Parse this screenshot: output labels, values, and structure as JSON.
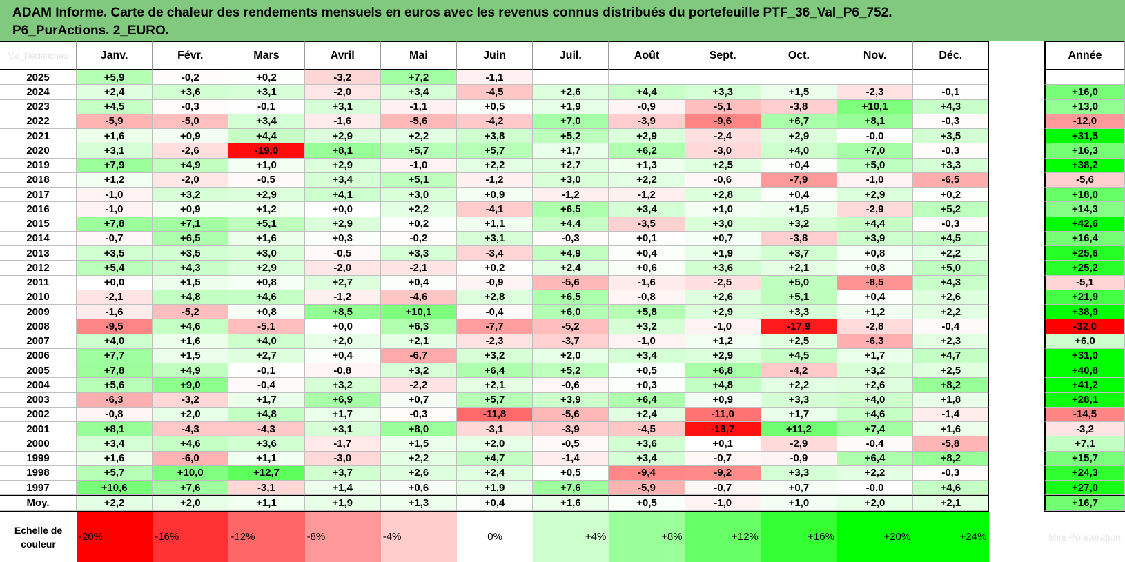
{
  "title": {
    "line1": "ADAM Informe. Carte de chaleur des rendements mensuels en euros avec les revenus connus distribués du portefeuille PTF_36_Val_P6_752.",
    "line2": "P6_PurActions. 2_EURO."
  },
  "corner_label": "Val_Déclencheu",
  "annual_label": "Année",
  "average_label": "Moy.",
  "scale_label": "Echelle de couleur",
  "scale_ghost_label": "Mini Ponderation",
  "colors": {
    "title_bg": "#80c97f",
    "negative_max": "#ff0000",
    "positive_max": "#00ff00",
    "neutral": "#ffffff"
  },
  "chart_data": {
    "type": "heatmap",
    "columns": [
      "Janv.",
      "Févr.",
      "Mars",
      "Avril",
      "Mai",
      "Juin",
      "Juil.",
      "Août",
      "Sept.",
      "Oct.",
      "Nov.",
      "Déc."
    ],
    "rows": [
      {
        "year": "2025",
        "months": [
          "+5,9",
          "-0,2",
          "+0,2",
          "-3,2",
          "+7,2",
          "-1,1",
          "",
          "",
          "",
          "",
          "",
          ""
        ],
        "annual": ""
      },
      {
        "year": "2024",
        "months": [
          "+2,4",
          "+3,6",
          "+3,1",
          "-2,0",
          "+3,4",
          "-4,5",
          "+2,6",
          "+4,4",
          "+3,3",
          "+1,5",
          "-2,3",
          "-0,1"
        ],
        "annual": "+16,0"
      },
      {
        "year": "2023",
        "months": [
          "+4,5",
          "-0,3",
          "-0,1",
          "+3,1",
          "-1,1",
          "+0,5",
          "+1,9",
          "-0,9",
          "-5,1",
          "-3,8",
          "+10,1",
          "+4,3"
        ],
        "annual": "+13,0"
      },
      {
        "year": "2022",
        "months": [
          "-5,9",
          "-5,0",
          "+3,4",
          "-1,6",
          "-5,6",
          "-4,2",
          "+7,0",
          "-3,9",
          "-9,6",
          "+6,7",
          "+8,1",
          "-0,3"
        ],
        "annual": "-12,0"
      },
      {
        "year": "2021",
        "months": [
          "+1,6",
          "+0,9",
          "+4,4",
          "+2,9",
          "+2,2",
          "+3,8",
          "+5,2",
          "+2,9",
          "-2,4",
          "+2,9",
          "-0,0",
          "+3,5"
        ],
        "annual": "+31,5"
      },
      {
        "year": "2020",
        "months": [
          "+3,1",
          "-2,6",
          "-19,0",
          "+8,1",
          "+5,7",
          "+5,7",
          "+1,7",
          "+6,2",
          "-3,0",
          "+4,0",
          "+7,0",
          "-0,3"
        ],
        "annual": "+16,3"
      },
      {
        "year": "2019",
        "months": [
          "+7,9",
          "+4,9",
          "+1,0",
          "+2,9",
          "-1,0",
          "+2,2",
          "+2,7",
          "+1,3",
          "+2,5",
          "+0,4",
          "+5,0",
          "+3,3"
        ],
        "annual": "+38,2"
      },
      {
        "year": "2018",
        "months": [
          "+1,2",
          "-2,0",
          "-0,5",
          "+3,4",
          "+5,1",
          "-1,2",
          "+3,0",
          "+2,2",
          "-0,6",
          "-7,9",
          "-1,0",
          "-6,5"
        ],
        "annual": "-5,6"
      },
      {
        "year": "2017",
        "months": [
          "-1,0",
          "+3,2",
          "+2,9",
          "+4,1",
          "+3,0",
          "+0,9",
          "-1,2",
          "-1,2",
          "+2,8",
          "+0,4",
          "+2,9",
          "+0,2"
        ],
        "annual": "+18,0"
      },
      {
        "year": "2016",
        "months": [
          "-1,0",
          "+0,9",
          "+1,2",
          "+0,0",
          "+2,2",
          "-4,1",
          "+6,5",
          "+3,4",
          "+1,0",
          "+1,5",
          "-2,9",
          "+5,2"
        ],
        "annual": "+14,3"
      },
      {
        "year": "2015",
        "months": [
          "+7,8",
          "+7,1",
          "+5,1",
          "+2,9",
          "+0,2",
          "+1,1",
          "+4,4",
          "-3,5",
          "+3,0",
          "+3,2",
          "+4,4",
          "-0,3"
        ],
        "annual": "+42,6"
      },
      {
        "year": "2014",
        "months": [
          "-0,7",
          "+6,5",
          "+1,6",
          "+0,3",
          "-0,2",
          "+3,1",
          "-0,3",
          "+0,1",
          "+0,7",
          "-3,8",
          "+3,9",
          "+4,5"
        ],
        "annual": "+16,4"
      },
      {
        "year": "2013",
        "months": [
          "+3,5",
          "+3,5",
          "+3,0",
          "-0,5",
          "+3,3",
          "-3,4",
          "+4,9",
          "+0,4",
          "+1,9",
          "+3,7",
          "+0,8",
          "+2,2"
        ],
        "annual": "+25,6"
      },
      {
        "year": "2012",
        "months": [
          "+5,4",
          "+4,3",
          "+2,9",
          "-2,0",
          "-2,1",
          "+0,2",
          "+2,4",
          "+0,6",
          "+3,6",
          "+2,1",
          "+0,8",
          "+5,0"
        ],
        "annual": "+25,2"
      },
      {
        "year": "2011",
        "months": [
          "+0,0",
          "+1,5",
          "+0,8",
          "+2,7",
          "+0,4",
          "-0,9",
          "-5,6",
          "-1,6",
          "-2,5",
          "+5,0",
          "-8,5",
          "+4,3"
        ],
        "annual": "-5,1"
      },
      {
        "year": "2010",
        "months": [
          "-2,1",
          "+4,8",
          "+4,6",
          "-1,2",
          "-4,6",
          "+2,8",
          "+6,5",
          "-0,8",
          "+2,6",
          "+5,1",
          "+0,4",
          "+2,6"
        ],
        "annual": "+21,9"
      },
      {
        "year": "2009",
        "months": [
          "-1,6",
          "-5,2",
          "+0,8",
          "+8,5",
          "+10,1",
          "-0,4",
          "+6,0",
          "+5,8",
          "+2,9",
          "+3,3",
          "+1,2",
          "+2,2"
        ],
        "annual": "+38,9"
      },
      {
        "year": "2008",
        "months": [
          "-9,5",
          "+4,6",
          "-5,1",
          "+0,0",
          "+6,3",
          "-7,7",
          "-5,2",
          "+3,2",
          "-1,0",
          "-17,9",
          "-2,8",
          "-0,4"
        ],
        "annual": "-32,0"
      },
      {
        "year": "2007",
        "months": [
          "+4,0",
          "+1,6",
          "+4,0",
          "+2,0",
          "+2,1",
          "-2,3",
          "-3,7",
          "-1,0",
          "+1,2",
          "+2,5",
          "-6,3",
          "+2,3"
        ],
        "annual": "+6,0"
      },
      {
        "year": "2006",
        "months": [
          "+7,7",
          "+1,5",
          "+2,7",
          "+0,4",
          "-6,7",
          "+3,2",
          "+2,0",
          "+3,4",
          "+2,9",
          "+4,5",
          "+1,7",
          "+4,7"
        ],
        "annual": "+31,0"
      },
      {
        "year": "2005",
        "months": [
          "+7,8",
          "+4,9",
          "-0,1",
          "-0,8",
          "+3,2",
          "+6,4",
          "+5,2",
          "+0,5",
          "+6,8",
          "-4,2",
          "+3,2",
          "+2,5"
        ],
        "annual": "+40,8"
      },
      {
        "year": "2004",
        "months": [
          "+5,6",
          "+9,0",
          "-0,4",
          "+3,2",
          "-2,2",
          "+2,1",
          "-0,6",
          "+0,3",
          "+4,8",
          "+2,2",
          "+2,6",
          "+8,2"
        ],
        "annual": "+41,2"
      },
      {
        "year": "2003",
        "months": [
          "-6,3",
          "-3,2",
          "+1,7",
          "+6,9",
          "+0,7",
          "+5,7",
          "+3,9",
          "+6,4",
          "+0,9",
          "+3,3",
          "+4,0",
          "+1,8"
        ],
        "annual": "+28,1"
      },
      {
        "year": "2002",
        "months": [
          "-0,8",
          "+2,0",
          "+4,8",
          "+1,7",
          "-0,3",
          "-11,8",
          "-5,6",
          "+2,4",
          "-11,0",
          "+1,7",
          "+4,6",
          "-1,4"
        ],
        "annual": "-14,5"
      },
      {
        "year": "2001",
        "months": [
          "+8,1",
          "-4,3",
          "-4,3",
          "+3,1",
          "+8,0",
          "-3,1",
          "-3,9",
          "-4,5",
          "-18,7",
          "+11,2",
          "+7,4",
          "+1,6"
        ],
        "annual": "-3,2"
      },
      {
        "year": "2000",
        "months": [
          "+3,4",
          "+4,6",
          "+3,6",
          "-1,7",
          "+1,5",
          "+2,0",
          "-0,5",
          "+3,6",
          "+0,1",
          "-2,9",
          "-0,4",
          "-5,8"
        ],
        "annual": "+7,1"
      },
      {
        "year": "1999",
        "months": [
          "+1,6",
          "-6,0",
          "+1,1",
          "-3,0",
          "+2,2",
          "+4,7",
          "-1,4",
          "+3,4",
          "-0,7",
          "-0,9",
          "+6,4",
          "+8,2"
        ],
        "annual": "+15,7"
      },
      {
        "year": "1998",
        "months": [
          "+5,7",
          "+10,0",
          "+12,7",
          "+3,7",
          "+2,6",
          "+2,4",
          "+0,5",
          "-9,4",
          "-9,2",
          "+3,3",
          "+2,2",
          "-0,3"
        ],
        "annual": "+24,3"
      },
      {
        "year": "1997",
        "months": [
          "+10,6",
          "+7,6",
          "-3,1",
          "+1,4",
          "+0,6",
          "+1,9",
          "+7,6",
          "-5,9",
          "-0,7",
          "+0,7",
          "-0,0",
          "+4,6"
        ],
        "annual": "+27,0"
      }
    ],
    "average": {
      "months": [
        "+2,2",
        "+2,0",
        "+1,1",
        "+1,9",
        "+1,3",
        "+0,4",
        "+1,6",
        "+0,5",
        "-1,0",
        "+1,0",
        "+2,0",
        "+2,1"
      ],
      "annual": "+16,7"
    },
    "color_scale": [
      "-20%",
      "-16%",
      "-12%",
      "-8%",
      "-4%",
      "0%",
      "+4%",
      "+8%",
      "+12%",
      "+16%",
      "+20%",
      "+24%"
    ],
    "scale_min": -20,
    "scale_max": 20,
    "annual_scale_min": -30,
    "annual_scale_max": 30
  }
}
